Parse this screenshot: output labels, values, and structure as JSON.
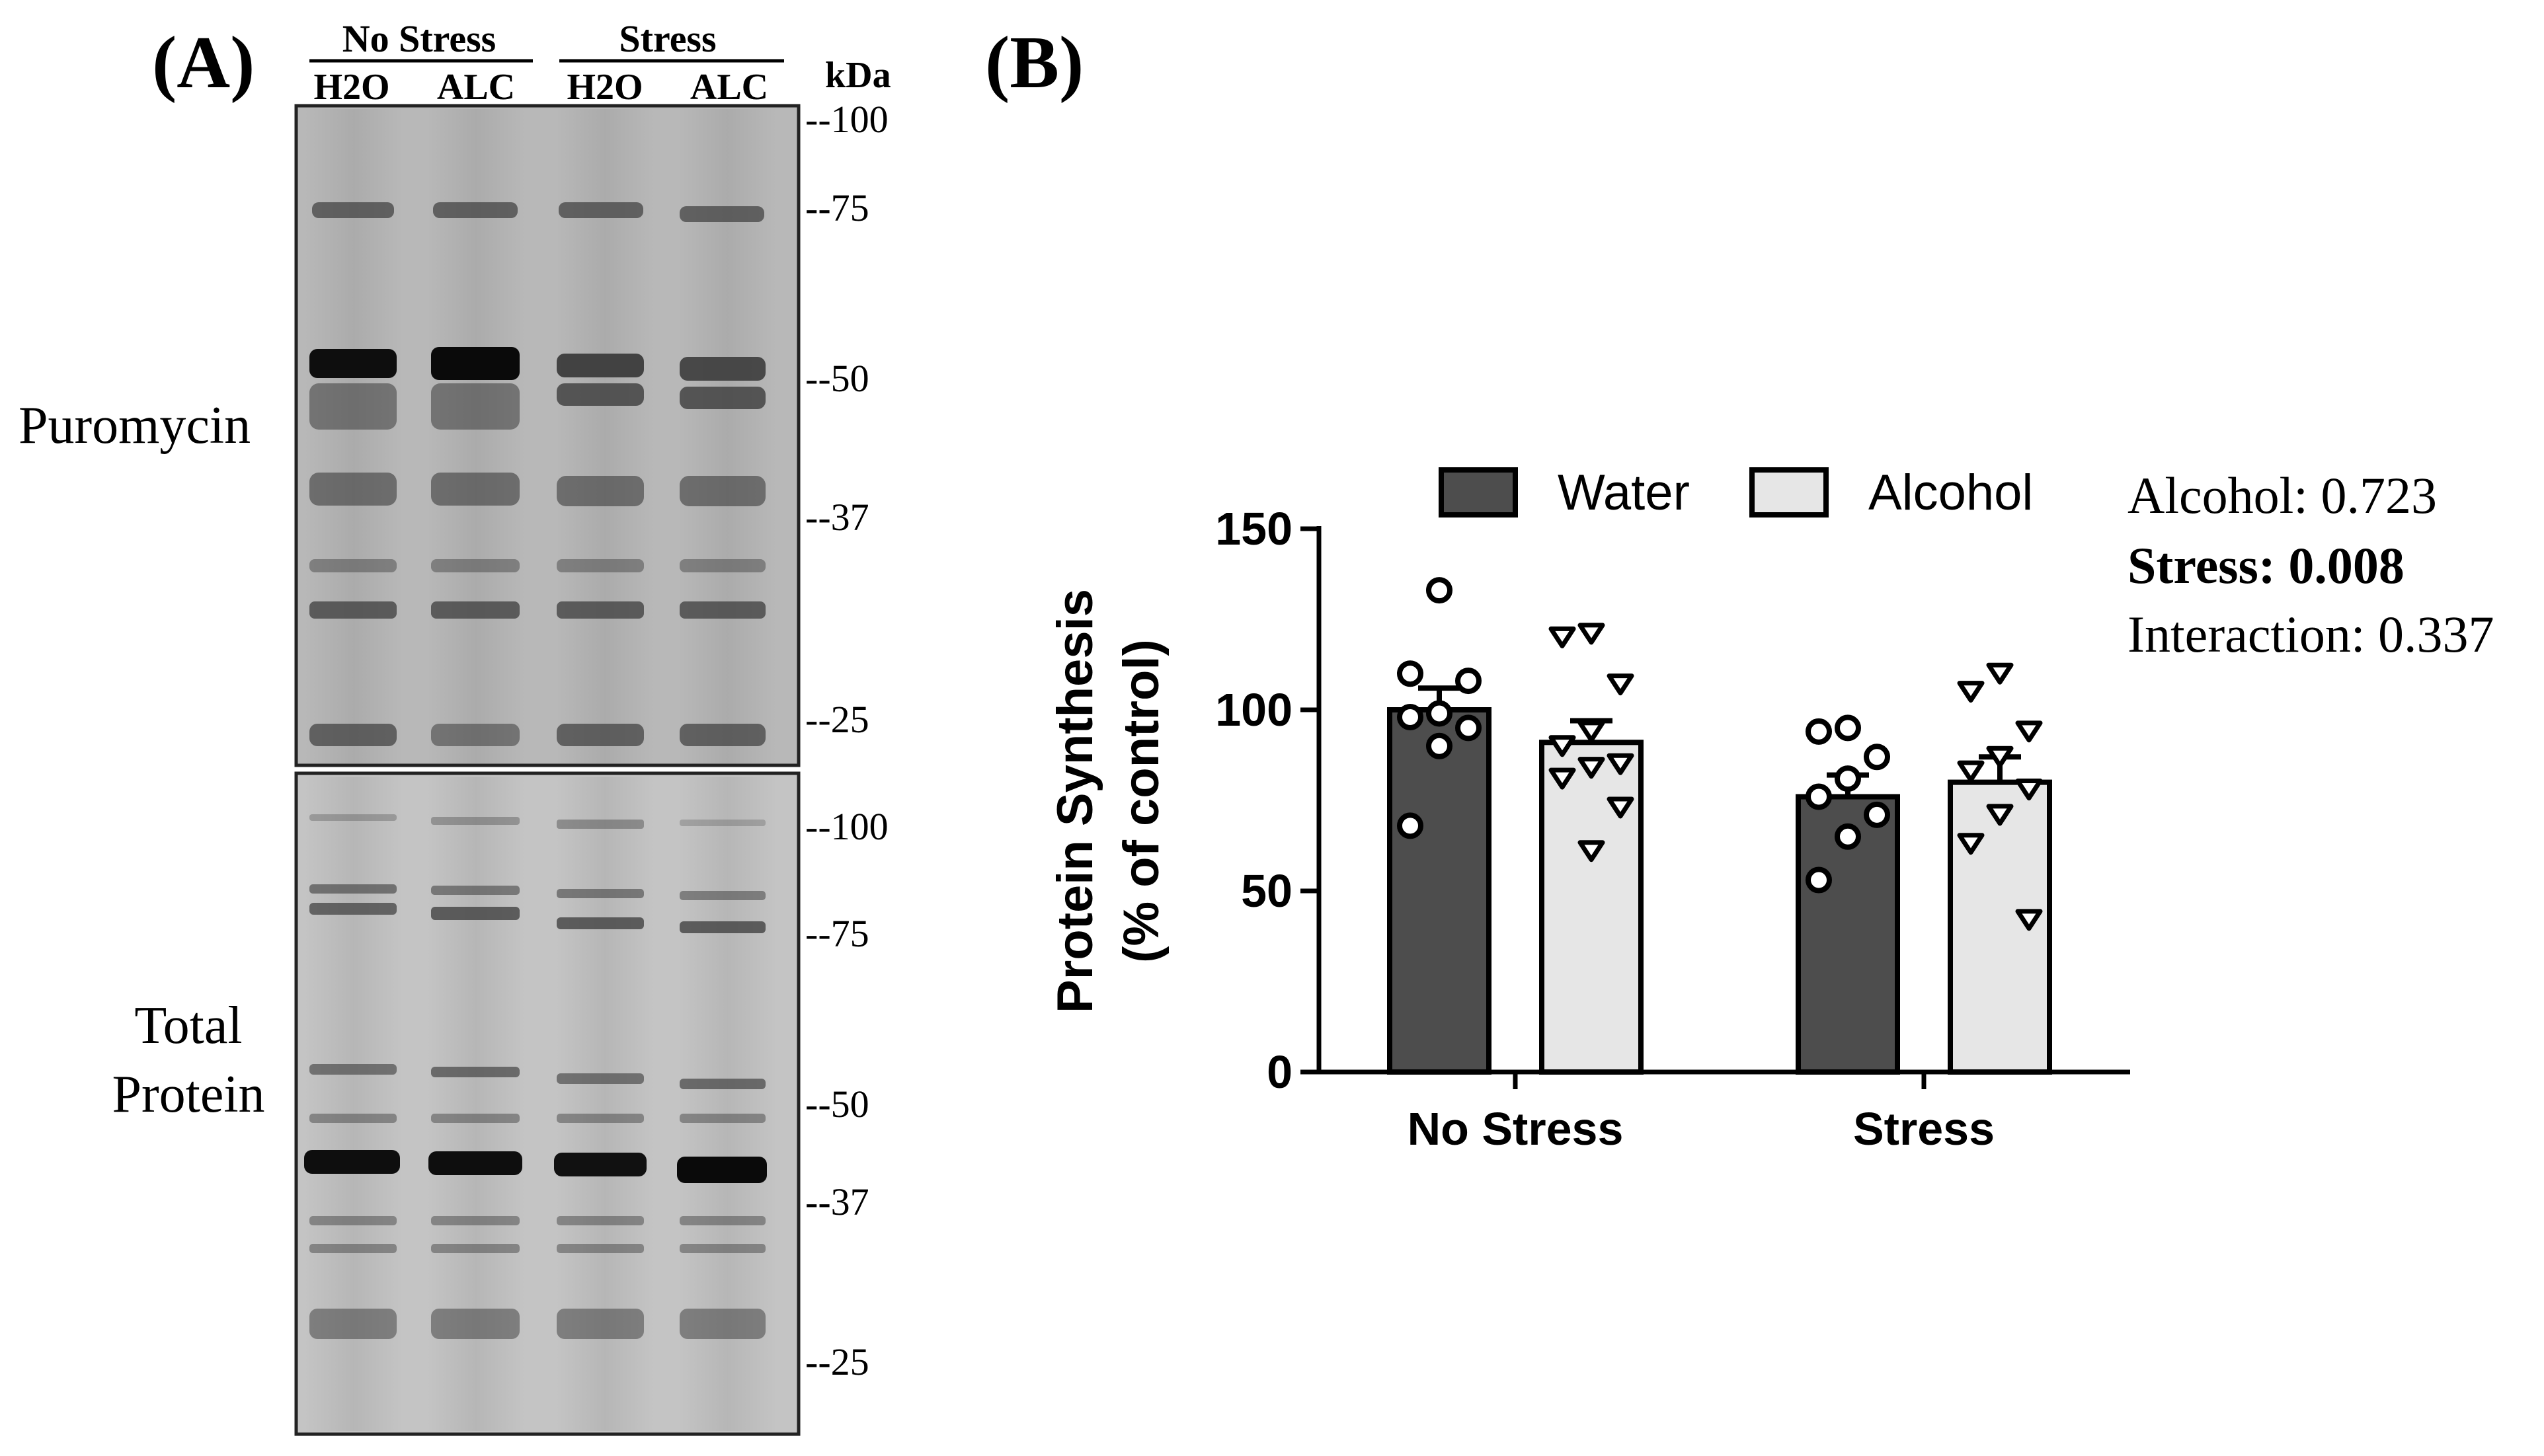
{
  "panel_a": {
    "panel_label": "(A)",
    "group_labels": [
      "No Stress",
      "Stress"
    ],
    "lane_labels": [
      "H2O",
      "ALC",
      "H2O",
      "ALC"
    ],
    "kda_label": "kDa",
    "top_blot": {
      "label": "Puromycin",
      "markers": [
        "--100",
        "--75",
        "--50",
        "--37",
        "--25"
      ]
    },
    "bottom_blot": {
      "label_line1": "Total",
      "label_line2": "Protein",
      "markers": [
        "--100",
        "--75",
        "--50",
        "--37",
        "--25"
      ]
    }
  },
  "panel_b": {
    "panel_label": "(B)",
    "stats": {
      "alcohol": "Alcohol: 0.723",
      "stress": "Stress: 0.008",
      "interaction": "Interaction: 0.337"
    }
  },
  "colors": {
    "water": "#4d4d4d",
    "alcohol": "#e6e6e6",
    "axis": "#000000"
  },
  "chart_data": {
    "type": "bar",
    "title": "",
    "xlabel": "",
    "ylabel_line1": "Protein Synthesis",
    "ylabel_line2": "(% of control)",
    "categories": [
      "No Stress",
      "Stress"
    ],
    "ylim": [
      0,
      150
    ],
    "yticks": [
      0,
      50,
      100,
      150
    ],
    "ytick_labels": [
      "0",
      "50",
      "100",
      "150"
    ],
    "legend_position": "top",
    "series": [
      {
        "name": "Water",
        "marker": "circle",
        "values": [
          100,
          76
        ],
        "sem": [
          6,
          6
        ],
        "points": [
          [
            133,
            110,
            108,
            99,
            98,
            95,
            90,
            68
          ],
          [
            95,
            94,
            87,
            81,
            76,
            71,
            65,
            53
          ]
        ]
      },
      {
        "name": "Alcohol",
        "marker": "triangle-down",
        "values": [
          91,
          80
        ],
        "sem": [
          6,
          7
        ],
        "points": [
          [
            121,
            120,
            107,
            94,
            90,
            85,
            84,
            81,
            73,
            61
          ],
          [
            110,
            105,
            94,
            87,
            83,
            78,
            71,
            63,
            42
          ]
        ]
      }
    ]
  }
}
